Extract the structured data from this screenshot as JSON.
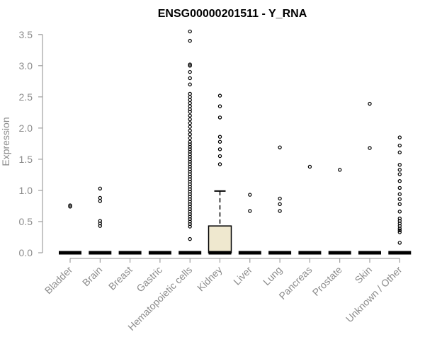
{
  "chart_data": {
    "type": "box",
    "title": "ENSG00000201511 - Y_RNA",
    "ylabel": "Expression",
    "xlabel": "",
    "ylim": [
      0,
      3.6
    ],
    "yticks": [
      "0.0",
      "0.5",
      "1.0",
      "1.5",
      "2.0",
      "2.5",
      "3.0",
      "3.5"
    ],
    "box_fill": "#efe8cf",
    "categories": [
      "Bladder",
      "Brain",
      "Breast",
      "Gastric",
      "Hematopoietic cells",
      "Kidney",
      "Liver",
      "Lung",
      "Pancreas",
      "Prostate",
      "Skin",
      "Unknown / Other"
    ],
    "boxes": [
      {
        "q1": 0,
        "median": 0,
        "q3": 0,
        "whisker_low": 0,
        "whisker_high": 0,
        "outliers": [
          0.74,
          0.76
        ]
      },
      {
        "q1": 0,
        "median": 0,
        "q3": 0,
        "whisker_low": 0,
        "whisker_high": 0,
        "outliers": [
          0.43,
          0.47,
          0.51,
          0.83,
          0.88,
          1.03
        ]
      },
      {
        "q1": 0,
        "median": 0,
        "q3": 0,
        "whisker_low": 0,
        "whisker_high": 0,
        "outliers": []
      },
      {
        "q1": 0,
        "median": 0,
        "q3": 0,
        "whisker_low": 0,
        "whisker_high": 0,
        "outliers": []
      },
      {
        "q1": 0,
        "median": 0,
        "q3": 0,
        "whisker_low": 0,
        "whisker_high": 0,
        "outliers": [
          0.22,
          0.42,
          0.46,
          0.5,
          0.54,
          0.58,
          0.62,
          0.66,
          0.7,
          0.74,
          0.78,
          0.82,
          0.86,
          0.9,
          0.94,
          0.98,
          1.02,
          1.06,
          1.1,
          1.14,
          1.18,
          1.22,
          1.26,
          1.3,
          1.34,
          1.38,
          1.42,
          1.46,
          1.5,
          1.54,
          1.58,
          1.62,
          1.66,
          1.7,
          1.74,
          1.78,
          1.84,
          1.9,
          1.96,
          2.02,
          2.08,
          2.14,
          2.2,
          2.26,
          2.3,
          2.35,
          2.4,
          2.45,
          2.5,
          2.55,
          2.7,
          2.8,
          2.9,
          3.0,
          3.02,
          3.4,
          3.55
        ]
      },
      {
        "q1": 0,
        "median": 0,
        "q3": 0.43,
        "whisker_low": 0,
        "whisker_high": 0.99,
        "outliers": [
          1.42,
          1.55,
          1.66,
          1.78,
          1.86,
          2.17,
          2.35,
          2.52
        ]
      },
      {
        "q1": 0,
        "median": 0,
        "q3": 0,
        "whisker_low": 0,
        "whisker_high": 0,
        "outliers": [
          0.67,
          0.93
        ]
      },
      {
        "q1": 0,
        "median": 0,
        "q3": 0,
        "whisker_low": 0,
        "whisker_high": 0,
        "outliers": [
          0.67,
          0.78,
          0.87,
          1.69
        ]
      },
      {
        "q1": 0,
        "median": 0,
        "q3": 0,
        "whisker_low": 0,
        "whisker_high": 0,
        "outliers": [
          1.38
        ]
      },
      {
        "q1": 0,
        "median": 0,
        "q3": 0,
        "whisker_low": 0,
        "whisker_high": 0,
        "outliers": [
          1.33
        ]
      },
      {
        "q1": 0,
        "median": 0,
        "q3": 0,
        "whisker_low": 0,
        "whisker_high": 0,
        "outliers": [
          1.68,
          2.39
        ]
      },
      {
        "q1": 0,
        "median": 0,
        "q3": 0,
        "whisker_low": 0,
        "whisker_high": 0,
        "outliers": [
          0.16,
          0.33,
          0.36,
          0.39,
          0.43,
          0.47,
          0.51,
          0.55,
          0.66,
          0.78,
          0.86,
          0.94,
          1.04,
          1.15,
          1.26,
          1.33,
          1.41,
          1.61,
          1.72,
          1.85
        ]
      }
    ]
  }
}
